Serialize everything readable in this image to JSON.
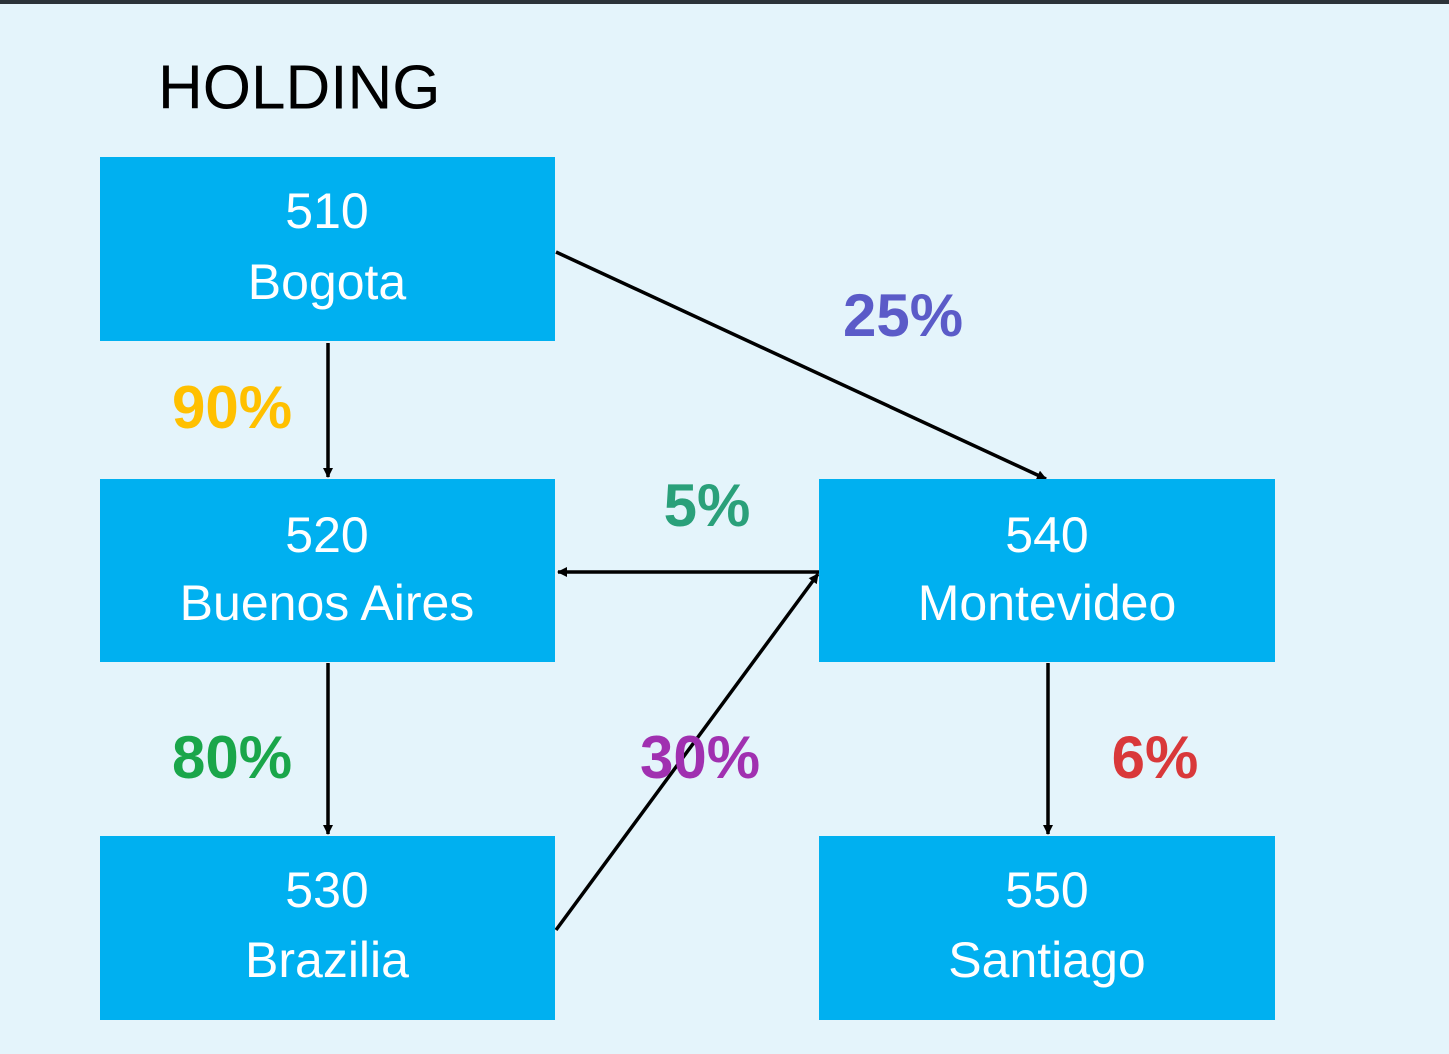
{
  "title": "HOLDING",
  "nodes": [
    {
      "code": "510",
      "name": "Bogota"
    },
    {
      "code": "520",
      "name": "Buenos Aires"
    },
    {
      "code": "530",
      "name": "Brazilia"
    },
    {
      "code": "540",
      "name": "Montevideo"
    },
    {
      "code": "550",
      "name": "Santiago"
    }
  ],
  "edges": [
    {
      "label": "90%"
    },
    {
      "label": "25%"
    },
    {
      "label": "5%"
    },
    {
      "label": "80%"
    },
    {
      "label": "30%"
    },
    {
      "label": "6%"
    }
  ]
}
